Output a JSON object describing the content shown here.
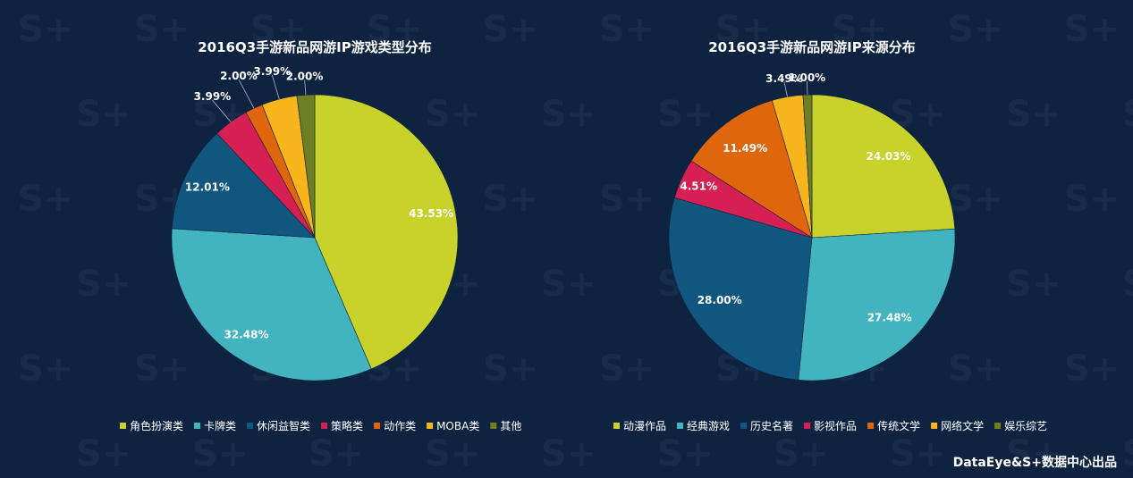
{
  "footer": "DataEye&S+数据中心出品",
  "chart_data": [
    {
      "type": "pie",
      "title": "2016Q3手游新品网游IP游戏类型分布",
      "slices": [
        {
          "label": "角色扮演类",
          "value": 43.53,
          "display": "43.53%",
          "color": "#c8d22a"
        },
        {
          "label": "卡牌类",
          "value": 32.48,
          "display": "32.48%",
          "color": "#42b4bf"
        },
        {
          "label": "休闲益智类",
          "value": 12.01,
          "display": "12.01%",
          "color": "#10567f"
        },
        {
          "label": "策略类",
          "value": 3.99,
          "display": "3.99%",
          "color": "#d61f52"
        },
        {
          "label": "动作类",
          "value": 2.0,
          "display": "2.00%",
          "color": "#e0660e"
        },
        {
          "label": "MOBA类",
          "value": 3.99,
          "display": "3.99%",
          "color": "#f9b51c"
        },
        {
          "label": "其他",
          "value": 2.0,
          "display": "2.00%",
          "color": "#6e7e22"
        }
      ],
      "legend_position": "bottom"
    },
    {
      "type": "pie",
      "title": "2016Q3手游新品网游IP来源分布",
      "slices": [
        {
          "label": "动漫作品",
          "value": 24.03,
          "display": "24.03%",
          "color": "#c8d22a"
        },
        {
          "label": "经典游戏",
          "value": 27.48,
          "display": "27.48%",
          "color": "#42b4bf"
        },
        {
          "label": "历史名著",
          "value": 28.0,
          "display": "28.00%",
          "color": "#10567f"
        },
        {
          "label": "影视作品",
          "value": 4.51,
          "display": "4.51%",
          "color": "#d61f52"
        },
        {
          "label": "传统文学",
          "value": 11.49,
          "display": "11.49%",
          "color": "#e0660e"
        },
        {
          "label": "网络文学",
          "value": 3.49,
          "display": "3.49%",
          "color": "#f9b51c"
        },
        {
          "label": "娱乐综艺",
          "value": 1.0,
          "display": "1.00%",
          "color": "#6e7e22"
        }
      ],
      "legend_position": "bottom"
    }
  ]
}
